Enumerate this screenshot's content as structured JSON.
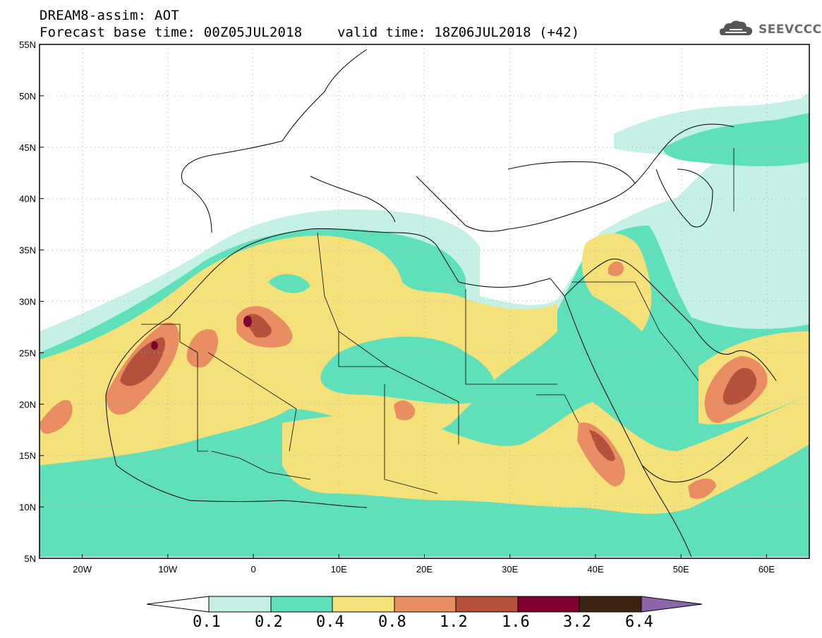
{
  "header": {
    "product": "DREAM8-assim: AOT",
    "base_time": "Forecast base time: 00Z05JUL2018",
    "valid_time": "valid time: 18Z06JUL2018 (+42)"
  },
  "logo": {
    "text": "SEEVCCC",
    "icon": "cloud-icon"
  },
  "map": {
    "extent": {
      "lon": [
        -25,
        65
      ],
      "lat": [
        5,
        55
      ]
    },
    "lat_ticks": [
      "5N",
      "10N",
      "15N",
      "20N",
      "25N",
      "30N",
      "35N",
      "40N",
      "45N",
      "50N",
      "55N"
    ],
    "lon_ticks": [
      "20W",
      "10W",
      "0",
      "10E",
      "20E",
      "30E",
      "40E",
      "50E",
      "60E"
    ],
    "variable": "Aerosol optical thickness"
  },
  "colorbar": {
    "levels": [
      "0.1",
      "0.2",
      "0.4",
      "0.8",
      "1.2",
      "1.6",
      "3.2",
      "6.4"
    ],
    "colors": [
      "#ffffff",
      "#c5f0e6",
      "#5fe0bb",
      "#f5e17a",
      "#e88e62",
      "#b4503c",
      "#7f0030",
      "#3d2412",
      "#8c65a8"
    ]
  }
}
